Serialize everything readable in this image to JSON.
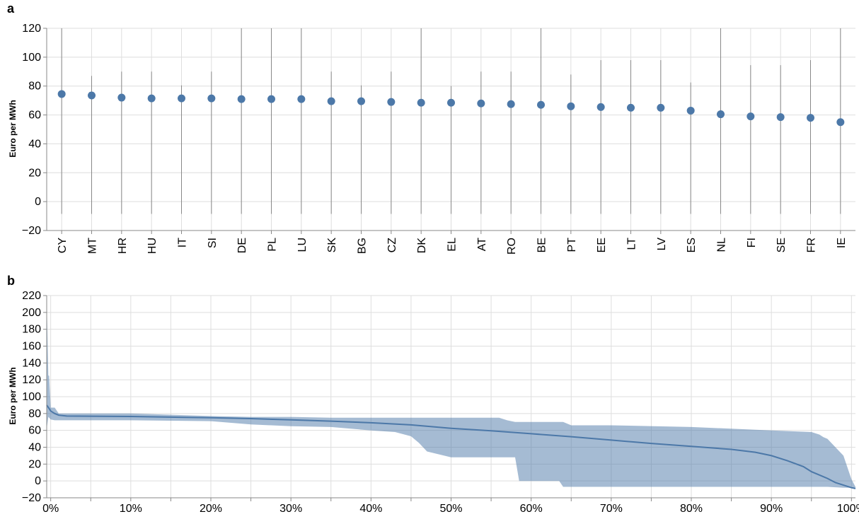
{
  "colors": {
    "series": "#4c78a8",
    "band": "#4c78a8",
    "whisker": "#888888",
    "grid": "#dedede"
  },
  "chart_data": [
    {
      "panel": "a",
      "type": "scatter",
      "ylabel": "Euro per MWh",
      "ylim": [
        -20,
        120
      ],
      "yticks": [
        120,
        100,
        80,
        60,
        40,
        20,
        0,
        -20
      ],
      "yticklabels": [
        "120",
        "100",
        "80",
        "60",
        "40",
        "20",
        "0",
        "−20"
      ],
      "grid": true,
      "categories": [
        "CY",
        "MT",
        "HR",
        "HU",
        "IT",
        "SI",
        "DE",
        "PL",
        "LU",
        "SK",
        "BG",
        "CZ",
        "DK",
        "EL",
        "AT",
        "RO",
        "BE",
        "PT",
        "EE",
        "LT",
        "LV",
        "ES",
        "NL",
        "FI",
        "SE",
        "FR",
        "IE"
      ],
      "values": [
        74.5,
        73.5,
        72,
        71.5,
        71.5,
        71.5,
        71,
        71,
        71,
        69.5,
        69.5,
        69,
        68.5,
        68.5,
        68,
        67.5,
        67,
        66,
        65.5,
        65,
        65,
        63,
        60.5,
        59,
        58.5,
        58,
        55
      ],
      "whisker_low": [
        -8.5,
        -8.5,
        -8.5,
        -8.5,
        -8.5,
        -8.5,
        -8.5,
        -8.5,
        -8.5,
        -8.5,
        -8.5,
        -8.5,
        -8.5,
        -8.5,
        -8.5,
        -8.5,
        -8.5,
        -8.5,
        -8.5,
        -8.5,
        -8.5,
        -8.5,
        -8.5,
        -8.5,
        -8.5,
        -8.5,
        -8.5
      ],
      "whisker_high": [
        120,
        87,
        90,
        90,
        80.5,
        90,
        120,
        120,
        120,
        90,
        80.5,
        90,
        120,
        80,
        90,
        90,
        120,
        88,
        98,
        98,
        98,
        82.5,
        120,
        94.5,
        94.5,
        98,
        120
      ]
    },
    {
      "panel": "b",
      "type": "area",
      "ylabel": "Euro per MWh",
      "ylim": [
        -20,
        220
      ],
      "yticks": [
        220,
        200,
        180,
        160,
        140,
        120,
        100,
        80,
        60,
        40,
        20,
        0,
        -20
      ],
      "yticklabels": [
        "220",
        "200",
        "180",
        "160",
        "140",
        "120",
        "100",
        "80",
        "60",
        "40",
        "20",
        "0",
        "−20"
      ],
      "xlim": [
        -0.005,
        1.005
      ],
      "xticks": [
        0,
        0.1,
        0.2,
        0.3,
        0.4,
        0.5,
        0.6,
        0.7,
        0.8,
        0.9,
        1.0
      ],
      "xticklabels": [
        "0%",
        "10%",
        "20%",
        "30%",
        "40%",
        "50%",
        "60%",
        "70%",
        "80%",
        "90%",
        "100%"
      ],
      "grid": true,
      "median_x": [
        -0.005,
        -0.002,
        0.0,
        0.005,
        0.01,
        0.02,
        0.1,
        0.2,
        0.25,
        0.3,
        0.35,
        0.4,
        0.45,
        0.5,
        0.55,
        0.6,
        0.65,
        0.7,
        0.75,
        0.8,
        0.85,
        0.88,
        0.9,
        0.92,
        0.94,
        0.95,
        0.96,
        0.97,
        0.98,
        0.99,
        1.0,
        1.005
      ],
      "median_y": [
        90,
        86,
        83,
        80,
        78,
        77,
        76.5,
        75,
        74,
        72.5,
        71,
        69,
        66.5,
        62.5,
        59.5,
        56,
        52.5,
        48.5,
        44.5,
        41,
        37.5,
        34,
        30,
        24,
        17,
        11,
        7,
        3,
        -2,
        -5,
        -8,
        -9
      ],
      "band_x": [
        -0.005,
        -0.003,
        -0.002,
        0.0,
        0.005,
        0.01,
        0.1,
        0.2,
        0.25,
        0.3,
        0.35,
        0.4,
        0.43,
        0.45,
        0.46,
        0.47,
        0.5,
        0.55,
        0.56,
        0.57,
        0.58,
        0.585,
        0.6,
        0.62,
        0.635,
        0.64,
        0.65,
        0.7,
        0.8,
        0.9,
        0.95,
        0.96,
        0.965,
        0.97,
        0.99,
        1.0,
        1.005
      ],
      "band_high": [
        215,
        125,
        125,
        87,
        87,
        80,
        80,
        77,
        76,
        76,
        75,
        75,
        75,
        75,
        75,
        75,
        75,
        75,
        75,
        72,
        70,
        70,
        70,
        70,
        70,
        70,
        66,
        66,
        64,
        60,
        58,
        55,
        52,
        50,
        30,
        2,
        -7
      ],
      "band_low": [
        62,
        76,
        75,
        73,
        72,
        72,
        72,
        71,
        67,
        65,
        64,
        60,
        58,
        53,
        45,
        35,
        28,
        28,
        28,
        28,
        28,
        0,
        0,
        0,
        0,
        -7,
        -7,
        -7,
        -7,
        -7,
        -7,
        -7,
        -7,
        -7,
        -8,
        -8,
        -8
      ]
    }
  ],
  "panels": {
    "a": {
      "label": "a"
    },
    "b": {
      "label": "b"
    }
  }
}
